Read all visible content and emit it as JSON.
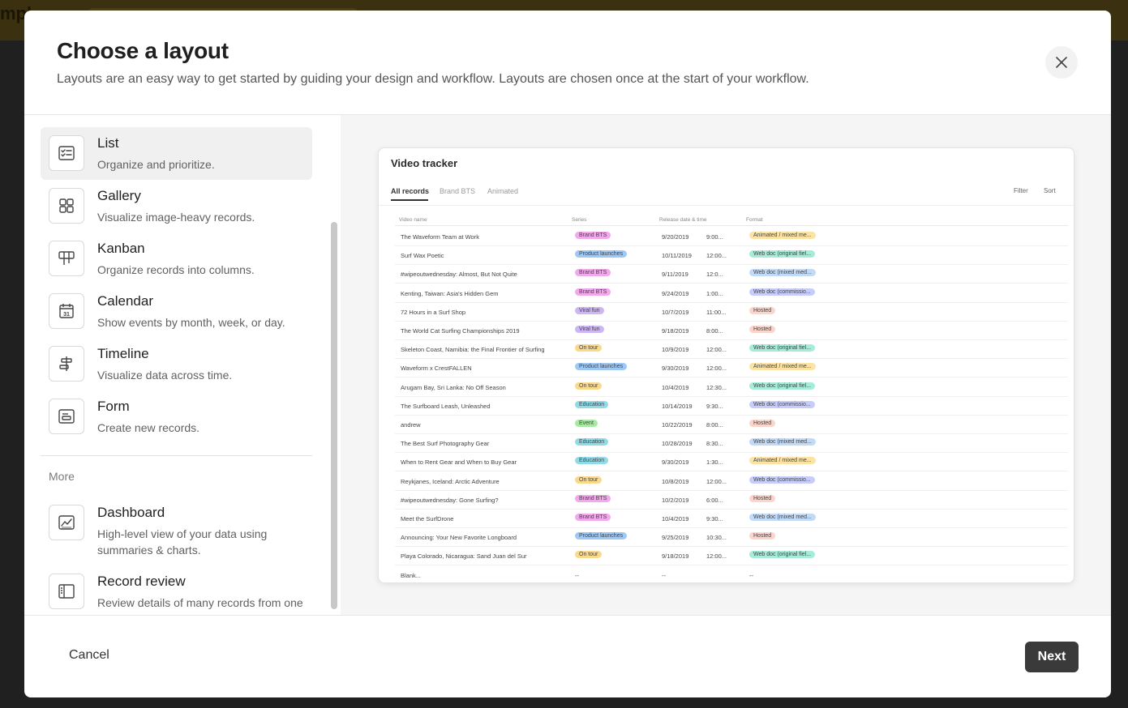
{
  "background": {
    "app_fragment": "mpl"
  },
  "modal": {
    "title": "Choose a layout",
    "subtitle": "Layouts are an easy way to get started by guiding your design and workflow. Layouts are chosen once at the start of your workflow."
  },
  "layouts": [
    {
      "name": "List",
      "desc": "Organize and prioritize.",
      "icon": "checklist-icon",
      "selected": true
    },
    {
      "name": "Gallery",
      "desc": "Visualize image-heavy records.",
      "icon": "gallery-grid-icon"
    },
    {
      "name": "Kanban",
      "desc": "Organize records into columns.",
      "icon": "kanban-columns-icon"
    },
    {
      "name": "Calendar",
      "desc": "Show events by month, week, or day.",
      "icon": "calendar-icon",
      "icon_text": "31"
    },
    {
      "name": "Timeline",
      "desc": "Visualize data across time.",
      "icon": "timeline-icon"
    },
    {
      "name": "Form",
      "desc": "Create new records.",
      "icon": "form-icon"
    }
  ],
  "more": {
    "label": "More",
    "items": [
      {
        "name": "Dashboard",
        "desc": "High-level view of your data using summaries & charts.",
        "icon": "dashboard-chart-icon"
      },
      {
        "name": "Record review",
        "desc": "Review details of many records from one table",
        "icon": "record-review-icon"
      }
    ]
  },
  "preview": {
    "title": "Video tracker",
    "tabs": [
      "All records",
      "Brand BTS",
      "Animated"
    ],
    "tools": [
      "Filter",
      "Sort"
    ],
    "columns": [
      "Video name",
      "Series",
      "Release date & time",
      "Format"
    ],
    "rows": [
      {
        "name": "The Waveform Team at Work",
        "series": "Brand BTS",
        "date": "9/20/2019",
        "time": "9:00...",
        "format": "Animated / mixed me..."
      },
      {
        "name": "Surf Wax Poetic",
        "series": "Product launches",
        "date": "10/11/2019",
        "time": "12:00...",
        "format": "Web doc (original fiel..."
      },
      {
        "name": "#wipeoutwednesday: Almost, But Not Quite",
        "series": "Brand BTS",
        "date": "9/11/2019",
        "time": "12:0...",
        "format": "Web doc (mixed med..."
      },
      {
        "name": "Kenting, Taiwan: Asia's Hidden Gem",
        "series": "Brand BTS",
        "date": "9/24/2019",
        "time": "1:00...",
        "format": "Web doc (commissio..."
      },
      {
        "name": "72 Hours in a Surf Shop",
        "series": "Viral fun",
        "date": "10/7/2019",
        "time": "11:00...",
        "format": "Hosted"
      },
      {
        "name": "The World Cat Surfing Championships 2019",
        "series": "Viral fun",
        "date": "9/18/2019",
        "time": "8:00...",
        "format": "Hosted"
      },
      {
        "name": "Skeleton Coast, Namibia: the Final Frontier of Surfing",
        "series": "On tour",
        "date": "10/9/2019",
        "time": "12:00...",
        "format": "Web doc (original fiel..."
      },
      {
        "name": "Waveform x CrestFALLEN",
        "series": "Product launches",
        "date": "9/30/2019",
        "time": "12:00...",
        "format": "Animated / mixed me..."
      },
      {
        "name": "Arugam Bay, Sri Lanka: No Off Season",
        "series": "On tour",
        "date": "10/4/2019",
        "time": "12:30...",
        "format": "Web doc (original fiel..."
      },
      {
        "name": "The Surfboard Leash, Unleashed",
        "series": "Education",
        "date": "10/14/2019",
        "time": "9:30...",
        "format": "Web doc (commissio..."
      },
      {
        "name": "andrew",
        "series": "Event",
        "date": "10/22/2019",
        "time": "8:00...",
        "format": "Hosted"
      },
      {
        "name": "The Best Surf Photography Gear",
        "series": "Education",
        "date": "10/28/2019",
        "time": "8:30...",
        "format": "Web doc (mixed med..."
      },
      {
        "name": "When to Rent Gear and When to Buy Gear",
        "series": "Education",
        "date": "9/30/2019",
        "time": "1:30...",
        "format": "Animated / mixed me..."
      },
      {
        "name": "Reykjanes, Iceland: Arctic Adventure",
        "series": "On tour",
        "date": "10/8/2019",
        "time": "12:00...",
        "format": "Web doc (commissio..."
      },
      {
        "name": "#wipeoutwednesday: Gone Surfing?",
        "series": "Brand BTS",
        "date": "10/2/2019",
        "time": "6:00...",
        "format": "Hosted"
      },
      {
        "name": "Meet the SurfDrone",
        "series": "Brand BTS",
        "date": "10/4/2019",
        "time": "9:30...",
        "format": "Web doc (mixed med..."
      },
      {
        "name": "Announcing: Your New Favorite Longboard",
        "series": "Product launches",
        "date": "9/25/2019",
        "time": "10:30...",
        "format": "Hosted"
      },
      {
        "name": "Playa Colorado, Nicaragua: Sand Juan del Sur",
        "series": "On tour",
        "date": "9/18/2019",
        "time": "12:00...",
        "format": "Web doc (original fiel..."
      },
      {
        "name": "Blank...",
        "series": "--",
        "date": "--",
        "time": "",
        "format": "--"
      }
    ],
    "series_colors": {
      "Brand BTS": "#f2a9ec",
      "Product launches": "#9ec9f7",
      "Viral fun": "#cdb6f5",
      "On tour": "#fbd98a",
      "Education": "#8fdbe8",
      "Event": "#a7eba2"
    },
    "format_colors": {
      "Animated": "#fde3a3",
      "Web doc (original": "#a6ecd9",
      "Web doc (mixed": "#c1daf8",
      "Web doc (commissio": "#c7cdfa",
      "Hosted": "#fbd4cb"
    }
  },
  "footer": {
    "cancel": "Cancel",
    "next": "Next"
  }
}
